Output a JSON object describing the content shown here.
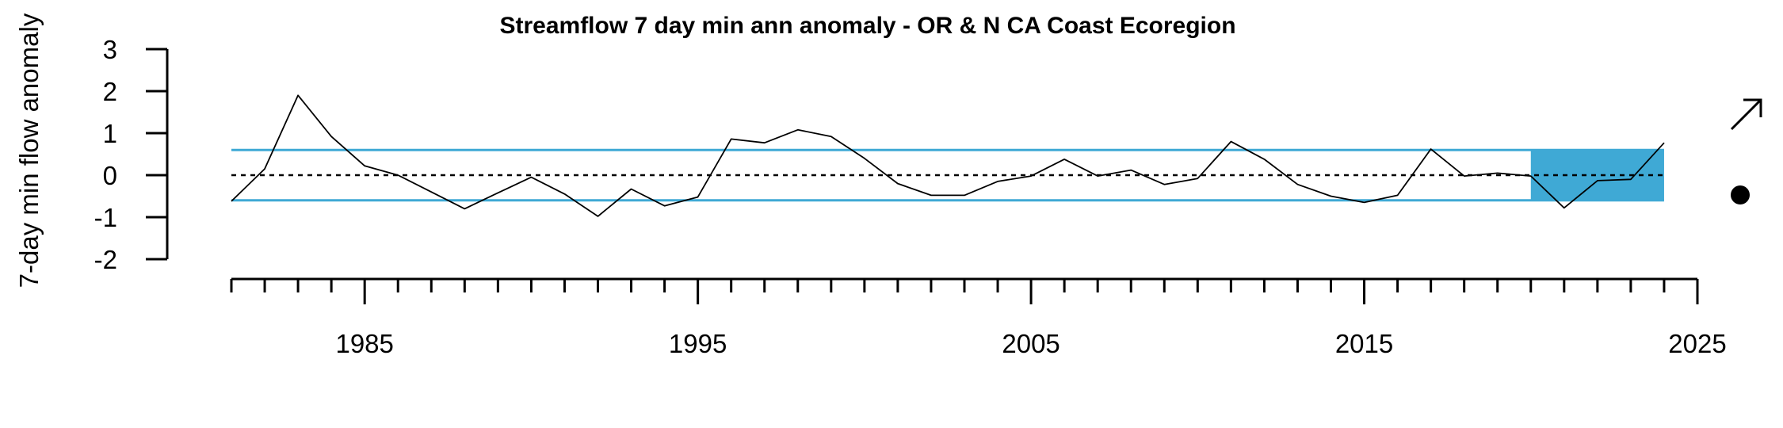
{
  "chart_data": {
    "type": "line",
    "title": "Streamflow 7 day min ann anomaly - OR & N CA Coast Ecoregion",
    "xlabel": "",
    "ylabel": "7-day min flow anomaly",
    "xlim": [
      1981,
      2025
    ],
    "ylim": [
      -2,
      3
    ],
    "y_ticks": [
      "-2",
      "-1",
      "0",
      "1",
      "2",
      "3"
    ],
    "x_major_ticks": [
      "1985",
      "1995",
      "2005",
      "2015",
      "2025"
    ],
    "x_minor_tick_step": 1,
    "reference_line": 0,
    "band": {
      "lower": -0.6,
      "upper": 0.6,
      "color": "#3FA9D5"
    },
    "highlight": {
      "x_start": 2020,
      "x_end": 2024,
      "color": "#3FA9D5"
    },
    "series": [
      {
        "color": "#000000",
        "x": [
          1981,
          1982,
          1983,
          1984,
          1985,
          1986,
          1987,
          1988,
          1989,
          1990,
          1991,
          1992,
          1993,
          1994,
          1995,
          1996,
          1997,
          1998,
          1999,
          2000,
          2001,
          2002,
          2003,
          2004,
          2005,
          2006,
          2007,
          2008,
          2009,
          2010,
          2011,
          2012,
          2013,
          2014,
          2015,
          2016,
          2017,
          2018,
          2019,
          2020,
          2021,
          2022,
          2023,
          2024
        ],
        "values": [
          -0.62,
          0.15,
          1.9,
          0.92,
          0.22,
          0.0,
          -0.4,
          -0.8,
          -0.42,
          -0.05,
          -0.45,
          -0.98,
          -0.33,
          -0.73,
          -0.52,
          0.86,
          0.77,
          1.08,
          0.92,
          0.4,
          -0.2,
          -0.48,
          -0.48,
          -0.15,
          -0.02,
          0.38,
          -0.02,
          0.12,
          -0.22,
          -0.08,
          0.8,
          0.38,
          -0.22,
          -0.5,
          -0.65,
          -0.48,
          0.62,
          -0.02,
          0.05,
          -0.02,
          -0.78,
          -0.13,
          -0.1,
          0.77
        ]
      }
    ],
    "trend_symbol": {
      "icon": "arrow-up-right-icon"
    },
    "status_symbol": {
      "icon": "filled-circle-icon"
    }
  }
}
